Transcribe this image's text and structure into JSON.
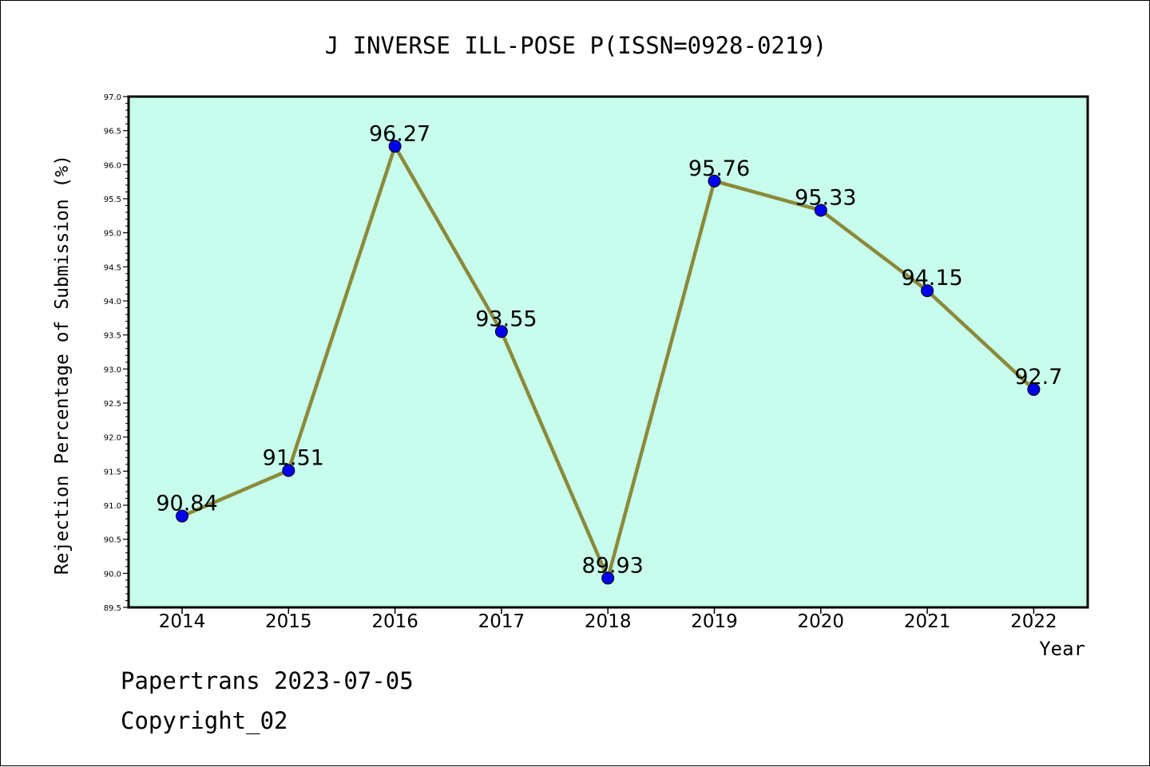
{
  "chart_data": {
    "type": "line",
    "title": "J INVERSE ILL-POSE P(ISSN=0928-0219)",
    "xlabel": "Year",
    "ylabel": "Rejection Percentage of Submission (%)",
    "categories": [
      "2014",
      "2015",
      "2016",
      "2017",
      "2018",
      "2019",
      "2020",
      "2021",
      "2022"
    ],
    "values": [
      90.84,
      91.51,
      96.27,
      93.55,
      89.93,
      95.76,
      95.33,
      94.15,
      92.7
    ],
    "data_labels": [
      "90.84",
      "91.51",
      "96.27",
      "93.55",
      "89.93",
      "95.76",
      "95.33",
      "94.15",
      "92.7"
    ],
    "ylim": [
      89.5,
      97.0
    ],
    "yticks": [
      "89.5",
      "90.0",
      "90.5",
      "91.0",
      "91.5",
      "92.0",
      "92.5",
      "93.0",
      "93.5",
      "94.0",
      "94.5",
      "95.0",
      "95.5",
      "96.0",
      "96.5",
      "97.0"
    ],
    "grid": false,
    "legend": "none",
    "colors": {
      "plot_background": "#c8fcec",
      "line": "#8b8a3a",
      "marker": "#0000ee",
      "axes": "#000000"
    }
  },
  "footer": {
    "line1": "Papertrans 2023-07-05",
    "line2": "Copyright_02"
  }
}
